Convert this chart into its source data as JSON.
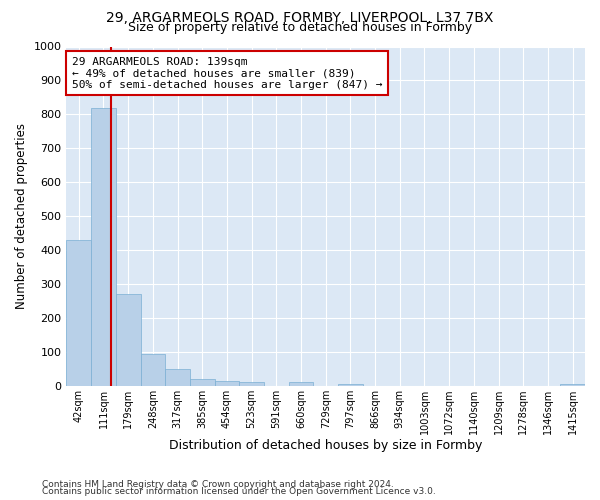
{
  "title1": "29, ARGARMEOLS ROAD, FORMBY, LIVERPOOL, L37 7BX",
  "title2": "Size of property relative to detached houses in Formby",
  "xlabel": "Distribution of detached houses by size in Formby",
  "ylabel": "Number of detached properties",
  "footnote1": "Contains HM Land Registry data © Crown copyright and database right 2024.",
  "footnote2": "Contains public sector information licensed under the Open Government Licence v3.0.",
  "bar_labels": [
    "42sqm",
    "111sqm",
    "179sqm",
    "248sqm",
    "317sqm",
    "385sqm",
    "454sqm",
    "523sqm",
    "591sqm",
    "660sqm",
    "729sqm",
    "797sqm",
    "866sqm",
    "934sqm",
    "1003sqm",
    "1072sqm",
    "1140sqm",
    "1209sqm",
    "1278sqm",
    "1346sqm",
    "1415sqm"
  ],
  "bar_values": [
    430,
    820,
    270,
    93,
    48,
    20,
    15,
    10,
    0,
    10,
    0,
    5,
    0,
    0,
    0,
    0,
    0,
    0,
    0,
    0,
    5
  ],
  "bar_color": "#b8d0e8",
  "bar_edge_color": "#7aafd4",
  "vline_x": 1.32,
  "vline_color": "#cc0000",
  "annotation_text": "29 ARGARMEOLS ROAD: 139sqm\n← 49% of detached houses are smaller (839)\n50% of semi-detached houses are larger (847) →",
  "annotation_box_color": "#ffffff",
  "annotation_box_edge_color": "#cc0000",
  "ylim": [
    0,
    1000
  ],
  "yticks": [
    0,
    100,
    200,
    300,
    400,
    500,
    600,
    700,
    800,
    900,
    1000
  ],
  "bg_color": "#ffffff",
  "plot_bg_color": "#dce8f5",
  "grid_color": "#ffffff",
  "figsize": [
    6.0,
    5.0
  ],
  "dpi": 100
}
